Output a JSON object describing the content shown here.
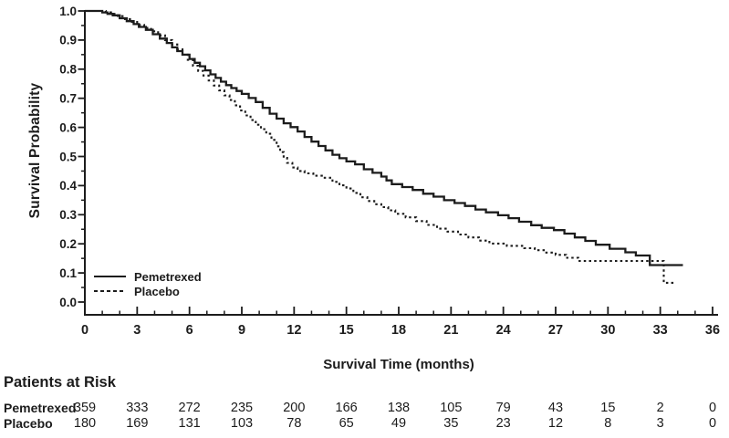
{
  "colors": {
    "foreground": "#1c1c1c",
    "background": "#ffffff"
  },
  "chart_data": {
    "type": "line",
    "subtype": "kaplan-meier-step",
    "title": "",
    "xlabel": "Survival Time (months)",
    "ylabel": "Survival Probability",
    "xlim": [
      0,
      36
    ],
    "ylim": [
      0.0,
      1.0
    ],
    "grid": false,
    "legend_position": "lower-left-inside",
    "x_major_ticks": [
      0,
      3,
      6,
      9,
      12,
      15,
      18,
      21,
      24,
      27,
      30,
      33,
      36
    ],
    "x_tick_labels": [
      "0",
      "3",
      "6",
      "9",
      "12",
      "15",
      "18",
      "21",
      "24",
      "27",
      "30",
      "33",
      "36"
    ],
    "x_minor_tick_step": 1,
    "y_major_ticks": [
      0.0,
      0.1,
      0.2,
      0.3,
      0.4,
      0.5,
      0.6,
      0.7,
      0.8,
      0.9,
      1.0
    ],
    "y_tick_labels": [
      "0.0",
      "0.1",
      "0.2",
      "0.3",
      "0.4",
      "0.5",
      "0.6",
      "0.7",
      "0.8",
      "0.9",
      "1.0"
    ],
    "y_minor_tick_step": 0.05,
    "series": [
      {
        "name": "Pemetrexed",
        "style": "solid",
        "step_points": [
          [
            0,
            1.0
          ],
          [
            0.8,
            1.0
          ],
          [
            1.0,
            0.995
          ],
          [
            1.3,
            0.99
          ],
          [
            1.6,
            0.985
          ],
          [
            2.0,
            0.975
          ],
          [
            2.4,
            0.965
          ],
          [
            2.8,
            0.955
          ],
          [
            3.1,
            0.945
          ],
          [
            3.5,
            0.935
          ],
          [
            3.9,
            0.92
          ],
          [
            4.3,
            0.905
          ],
          [
            4.7,
            0.89
          ],
          [
            5.0,
            0.875
          ],
          [
            5.3,
            0.862
          ],
          [
            5.6,
            0.85
          ],
          [
            6.0,
            0.835
          ],
          [
            6.3,
            0.822
          ],
          [
            6.6,
            0.81
          ],
          [
            6.9,
            0.796
          ],
          [
            7.2,
            0.782
          ],
          [
            7.5,
            0.77
          ],
          [
            7.8,
            0.757
          ],
          [
            8.1,
            0.745
          ],
          [
            8.4,
            0.735
          ],
          [
            8.7,
            0.725
          ],
          [
            9.0,
            0.715
          ],
          [
            9.4,
            0.701
          ],
          [
            9.8,
            0.687
          ],
          [
            10.2,
            0.667
          ],
          [
            10.6,
            0.647
          ],
          [
            11.0,
            0.63
          ],
          [
            11.4,
            0.614
          ],
          [
            11.8,
            0.601
          ],
          [
            12.2,
            0.586
          ],
          [
            12.6,
            0.567
          ],
          [
            13.0,
            0.551
          ],
          [
            13.4,
            0.536
          ],
          [
            13.8,
            0.521
          ],
          [
            14.2,
            0.506
          ],
          [
            14.6,
            0.494
          ],
          [
            15.0,
            0.483
          ],
          [
            15.5,
            0.473
          ],
          [
            16.0,
            0.456
          ],
          [
            16.5,
            0.444
          ],
          [
            17.0,
            0.431
          ],
          [
            17.3,
            0.418
          ],
          [
            17.6,
            0.405
          ],
          [
            18.2,
            0.395
          ],
          [
            18.8,
            0.385
          ],
          [
            19.4,
            0.372
          ],
          [
            20.0,
            0.362
          ],
          [
            20.6,
            0.35
          ],
          [
            21.2,
            0.34
          ],
          [
            21.8,
            0.33
          ],
          [
            22.4,
            0.318
          ],
          [
            23.0,
            0.308
          ],
          [
            23.7,
            0.298
          ],
          [
            24.3,
            0.288
          ],
          [
            24.9,
            0.276
          ],
          [
            25.6,
            0.264
          ],
          [
            26.2,
            0.255
          ],
          [
            26.9,
            0.247
          ],
          [
            27.5,
            0.235
          ],
          [
            28.1,
            0.222
          ],
          [
            28.7,
            0.21
          ],
          [
            29.3,
            0.197
          ],
          [
            30.1,
            0.183
          ],
          [
            31.0,
            0.171
          ],
          [
            31.6,
            0.16
          ],
          [
            32.4,
            0.127
          ],
          [
            34.3,
            0.127
          ]
        ]
      },
      {
        "name": "Placebo",
        "style": "dotted",
        "step_points": [
          [
            0,
            1.0
          ],
          [
            0.9,
            1.0
          ],
          [
            1.2,
            0.995
          ],
          [
            1.5,
            0.99
          ],
          [
            1.9,
            0.982
          ],
          [
            2.3,
            0.972
          ],
          [
            2.7,
            0.962
          ],
          [
            3.0,
            0.952
          ],
          [
            3.4,
            0.942
          ],
          [
            3.8,
            0.93
          ],
          [
            4.2,
            0.916
          ],
          [
            4.6,
            0.9
          ],
          [
            5.0,
            0.885
          ],
          [
            5.3,
            0.868
          ],
          [
            5.6,
            0.85
          ],
          [
            5.9,
            0.832
          ],
          [
            6.2,
            0.812
          ],
          [
            6.5,
            0.794
          ],
          [
            6.8,
            0.778
          ],
          [
            7.1,
            0.761
          ],
          [
            7.4,
            0.744
          ],
          [
            7.7,
            0.727
          ],
          [
            8.0,
            0.71
          ],
          [
            8.3,
            0.694
          ],
          [
            8.6,
            0.676
          ],
          [
            8.9,
            0.658
          ],
          [
            9.2,
            0.641
          ],
          [
            9.5,
            0.625
          ],
          [
            9.8,
            0.609
          ],
          [
            10.1,
            0.594
          ],
          [
            10.4,
            0.578
          ],
          [
            10.7,
            0.557
          ],
          [
            11.0,
            0.535
          ],
          [
            11.2,
            0.515
          ],
          [
            11.4,
            0.495
          ],
          [
            11.6,
            0.478
          ],
          [
            11.9,
            0.462
          ],
          [
            12.2,
            0.45
          ],
          [
            12.6,
            0.442
          ],
          [
            13.1,
            0.434
          ],
          [
            13.7,
            0.427
          ],
          [
            14.2,
            0.413
          ],
          [
            14.6,
            0.401
          ],
          [
            15.0,
            0.39
          ],
          [
            15.4,
            0.375
          ],
          [
            15.8,
            0.36
          ],
          [
            16.2,
            0.347
          ],
          [
            16.6,
            0.336
          ],
          [
            17.0,
            0.326
          ],
          [
            17.4,
            0.315
          ],
          [
            17.8,
            0.303
          ],
          [
            18.4,
            0.291
          ],
          [
            19.0,
            0.278
          ],
          [
            19.6,
            0.265
          ],
          [
            20.2,
            0.252
          ],
          [
            20.8,
            0.242
          ],
          [
            21.4,
            0.232
          ],
          [
            22.0,
            0.222
          ],
          [
            22.6,
            0.211
          ],
          [
            23.2,
            0.201
          ],
          [
            24.2,
            0.193
          ],
          [
            25.2,
            0.185
          ],
          [
            25.8,
            0.178
          ],
          [
            26.4,
            0.17
          ],
          [
            27.0,
            0.162
          ],
          [
            27.6,
            0.152
          ],
          [
            28.3,
            0.141
          ],
          [
            33.2,
            0.141
          ],
          [
            33.2,
            0.066
          ],
          [
            33.8,
            0.066
          ]
        ]
      }
    ]
  },
  "risk_table": {
    "header": "Patients at Risk",
    "time_points": [
      0,
      3,
      6,
      9,
      12,
      15,
      18,
      21,
      24,
      27,
      30,
      33,
      36
    ],
    "rows": [
      {
        "label": "Pemetrexed",
        "counts": [
          "359",
          "333",
          "272",
          "235",
          "200",
          "166",
          "138",
          "105",
          "79",
          "43",
          "15",
          "2",
          "0"
        ]
      },
      {
        "label": "Placebo",
        "counts": [
          "180",
          "169",
          "131",
          "103",
          "78",
          "65",
          "49",
          "35",
          "23",
          "12",
          "8",
          "3",
          "0"
        ]
      }
    ]
  }
}
